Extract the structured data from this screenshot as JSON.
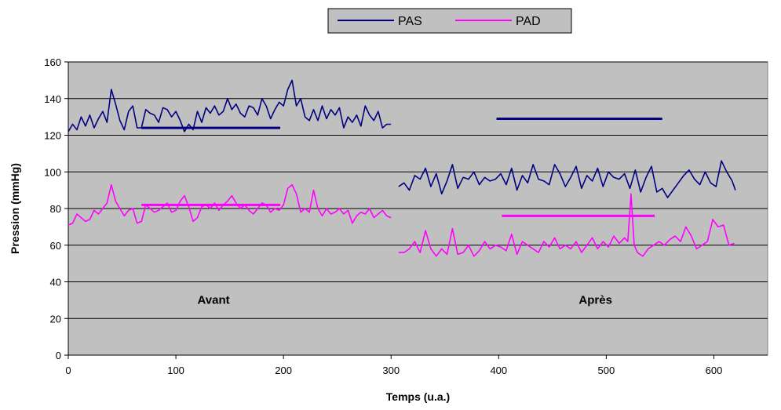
{
  "chart_data": {
    "type": "line",
    "title": "",
    "xlabel": "Temps (u.a.)",
    "ylabel": "Pression (mmHg)",
    "xlim": [
      0,
      650
    ],
    "ylim": [
      0,
      160
    ],
    "x_ticks": [
      0,
      100,
      200,
      300,
      400,
      500,
      600
    ],
    "y_ticks": [
      0,
      20,
      40,
      60,
      80,
      100,
      120,
      140,
      160
    ],
    "grid": "horizontal",
    "legend_position": "top-center",
    "plot_background": "#c0c0c0",
    "annotations": [
      {
        "text": "Avant",
        "x": 135,
        "y": 28
      },
      {
        "text": "Après",
        "x": 490,
        "y": 28
      }
    ],
    "series": [
      {
        "name": "PAS",
        "color": "#000080",
        "segments": [
          {
            "x": [
              0,
              4,
              8,
              12,
              16,
              20,
              24,
              28,
              32,
              36,
              40,
              44,
              48,
              52,
              56,
              60,
              64,
              68,
              72,
              76,
              80,
              84,
              88,
              92,
              96,
              100,
              104,
              108,
              112,
              116,
              120,
              124,
              128,
              132,
              136,
              140,
              144,
              148,
              152,
              156,
              160,
              164,
              168,
              172,
              176,
              180,
              184,
              188,
              192,
              196,
              200,
              204,
              208,
              212,
              216,
              220,
              224,
              228,
              232,
              236,
              240,
              244,
              248,
              252,
              256,
              260,
              264,
              268,
              272,
              276,
              280,
              284,
              288,
              292,
              296,
              300
            ],
            "y": [
              122,
              126,
              123,
              130,
              125,
              131,
              124,
              129,
              133,
              127,
              145,
              137,
              128,
              123,
              133,
              136,
              124,
              124,
              134,
              132,
              131,
              127,
              135,
              134,
              130,
              133,
              128,
              122,
              126,
              123,
              133,
              127,
              135,
              132,
              136,
              131,
              133,
              140,
              134,
              137,
              132,
              130,
              136,
              135,
              131,
              140,
              136,
              129,
              134,
              138,
              136,
              145,
              150,
              136,
              140,
              130,
              128,
              134,
              128,
              136,
              129,
              134,
              131,
              135,
              124,
              130,
              127,
              131,
              125,
              136,
              131,
              128,
              133,
              124,
              126,
              126
            ]
          },
          {
            "x": [
              307,
              312,
              317,
              322,
              327,
              332,
              337,
              342,
              347,
              352,
              357,
              362,
              367,
              372,
              377,
              382,
              387,
              392,
              397,
              402,
              407,
              412,
              417,
              422,
              427,
              432,
              437,
              442,
              447,
              452,
              457,
              462,
              467,
              472,
              477,
              482,
              487,
              492,
              497,
              502,
              507,
              512,
              517,
              522,
              527,
              532,
              537,
              542,
              547,
              552,
              557,
              562,
              567,
              572,
              577,
              582,
              587,
              592,
              597,
              602,
              607,
              612,
              617,
              620
            ],
            "y": [
              92,
              94,
              90,
              98,
              96,
              102,
              92,
              99,
              88,
              95,
              104,
              91,
              97,
              96,
              100,
              93,
              97,
              95,
              96,
              99,
              93,
              102,
              90,
              98,
              94,
              104,
              96,
              95,
              93,
              104,
              99,
              92,
              97,
              103,
              91,
              98,
              95,
              102,
              92,
              100,
              97,
              96,
              99,
              91,
              101,
              89,
              97,
              103,
              89,
              91,
              86,
              90,
              94,
              98,
              101,
              96,
              93,
              100,
              94,
              92,
              106,
              100,
              95,
              90
            ]
          }
        ],
        "mean_lines": [
          {
            "x": [
              68,
              197
            ],
            "y": 124
          },
          {
            "x": [
              398,
              552
            ],
            "y": 129
          }
        ]
      },
      {
        "name": "PAD",
        "color": "#ff00ff",
        "segments": [
          {
            "x": [
              0,
              4,
              8,
              12,
              16,
              20,
              24,
              28,
              32,
              36,
              40,
              44,
              48,
              52,
              56,
              60,
              64,
              68,
              72,
              76,
              80,
              84,
              88,
              92,
              96,
              100,
              104,
              108,
              112,
              116,
              120,
              124,
              128,
              132,
              136,
              140,
              144,
              148,
              152,
              156,
              160,
              164,
              168,
              172,
              176,
              180,
              184,
              188,
              192,
              196,
              200,
              204,
              208,
              212,
              216,
              220,
              224,
              228,
              232,
              236,
              240,
              244,
              248,
              252,
              256,
              260,
              264,
              268,
              272,
              276,
              280,
              284,
              288,
              292,
              296,
              300
            ],
            "y": [
              71,
              72,
              77,
              75,
              73,
              74,
              79,
              77,
              80,
              83,
              93,
              84,
              80,
              76,
              79,
              80,
              72,
              73,
              82,
              80,
              78,
              79,
              81,
              83,
              78,
              79,
              84,
              87,
              81,
              73,
              75,
              81,
              82,
              80,
              83,
              79,
              82,
              84,
              87,
              83,
              80,
              82,
              79,
              77,
              80,
              83,
              82,
              78,
              80,
              79,
              82,
              91,
              93,
              88,
              78,
              80,
              78,
              90,
              80,
              76,
              80,
              77,
              78,
              80,
              77,
              79,
              72,
              76,
              78,
              77,
              80,
              75,
              77,
              79,
              76,
              75
            ]
          },
          {
            "x": [
              307,
              312,
              317,
              322,
              327,
              332,
              337,
              342,
              347,
              352,
              357,
              362,
              367,
              372,
              377,
              382,
              387,
              392,
              397,
              402,
              407,
              412,
              417,
              422,
              427,
              432,
              437,
              442,
              447,
              452,
              457,
              462,
              467,
              472,
              477,
              482,
              487,
              492,
              497,
              502,
              507,
              512,
              517,
              520,
              523,
              526,
              529,
              534,
              539,
              544,
              549,
              554,
              559,
              564,
              569,
              574,
              579,
              584,
              589,
              594,
              599,
              604,
              609,
              614,
              619
            ],
            "y": [
              56,
              56,
              58,
              62,
              56,
              68,
              58,
              54,
              58,
              55,
              69,
              55,
              56,
              60,
              54,
              57,
              62,
              58,
              60,
              59,
              57,
              66,
              55,
              62,
              60,
              58,
              56,
              62,
              59,
              64,
              58,
              60,
              58,
              62,
              56,
              60,
              64,
              58,
              62,
              59,
              65,
              61,
              64,
              62,
              88,
              60,
              56,
              54,
              58,
              60,
              62,
              60,
              63,
              65,
              62,
              70,
              65,
              58,
              60,
              62,
              74,
              70,
              71,
              60,
              61
            ]
          }
        ],
        "mean_lines": [
          {
            "x": [
              68,
              197
            ],
            "y": 82
          },
          {
            "x": [
              403,
              545
            ],
            "y": 76
          }
        ]
      }
    ]
  }
}
